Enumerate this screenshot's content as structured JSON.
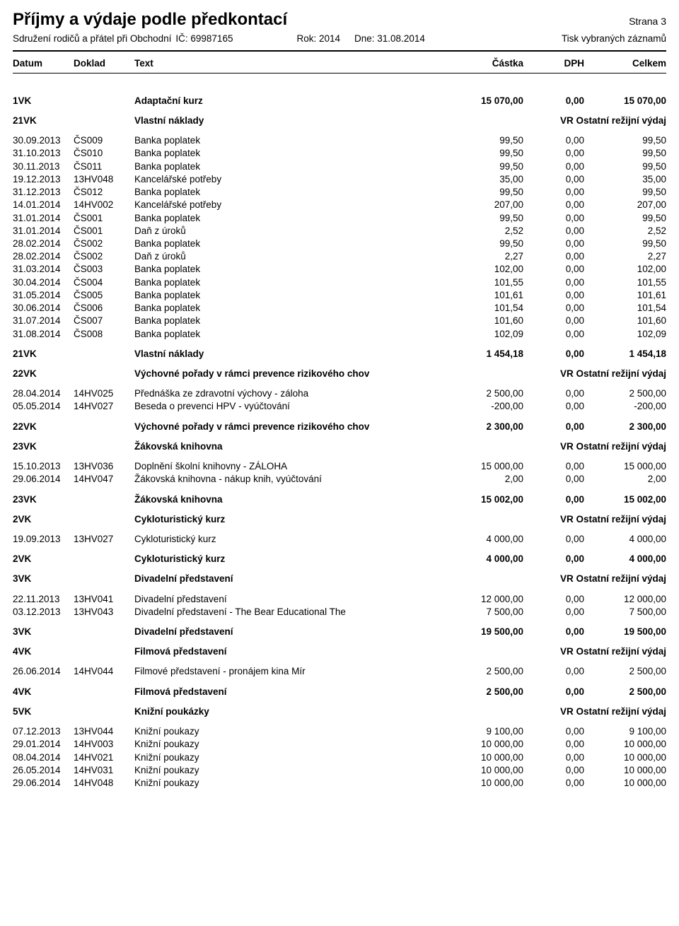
{
  "header": {
    "title": "Příjmy a výdaje podle předkontací",
    "page": "Strana 3",
    "org": "Sdružení rodičů a přátel při Obchodní",
    "ic": "IČ: 69987165",
    "rok": "Rok: 2014",
    "dne": "Dne: 31.08.2014",
    "tisk": "Tisk vybraných záznamů"
  },
  "columns": {
    "c1": "Datum",
    "c2": "Doklad",
    "c3": "Text",
    "c4": "Částka",
    "c5": "DPH",
    "c6": "Celkem"
  },
  "vr_note": "VR Ostatní režijní výdaj",
  "sections": [
    {
      "code": "1VK",
      "title": "Adaptační kurz",
      "header_totals": [
        "15 070,00",
        "0,00",
        "15 070,00"
      ],
      "rows": [],
      "footer_totals": null
    },
    {
      "code": "21VK",
      "title": "Vlastní náklady",
      "note": true,
      "header_totals": null,
      "rows": [
        {
          "d": "30.09.2013",
          "dk": "ČS009",
          "t": "Banka poplatek",
          "a": "99,50",
          "v": "0,00",
          "c": "99,50"
        },
        {
          "d": "31.10.2013",
          "dk": "ČS010",
          "t": "Banka poplatek",
          "a": "99,50",
          "v": "0,00",
          "c": "99,50"
        },
        {
          "d": "30.11.2013",
          "dk": "ČS011",
          "t": "Banka poplatek",
          "a": "99,50",
          "v": "0,00",
          "c": "99,50"
        },
        {
          "d": "19.12.2013",
          "dk": "13HV048",
          "t": "Kancelářské potřeby",
          "a": "35,00",
          "v": "0,00",
          "c": "35,00"
        },
        {
          "d": "31.12.2013",
          "dk": "ČS012",
          "t": "Banka poplatek",
          "a": "99,50",
          "v": "0,00",
          "c": "99,50"
        },
        {
          "d": "14.01.2014",
          "dk": "14HV002",
          "t": "Kancelářské potřeby",
          "a": "207,00",
          "v": "0,00",
          "c": "207,00"
        },
        {
          "d": "31.01.2014",
          "dk": "ČS001",
          "t": "Banka poplatek",
          "a": "99,50",
          "v": "0,00",
          "c": "99,50"
        },
        {
          "d": "31.01.2014",
          "dk": "ČS001",
          "t": "Daň z úroků",
          "a": "2,52",
          "v": "0,00",
          "c": "2,52"
        },
        {
          "d": "28.02.2014",
          "dk": "ČS002",
          "t": "Banka poplatek",
          "a": "99,50",
          "v": "0,00",
          "c": "99,50"
        },
        {
          "d": "28.02.2014",
          "dk": "ČS002",
          "t": "Daň z úroků",
          "a": "2,27",
          "v": "0,00",
          "c": "2,27"
        },
        {
          "d": "31.03.2014",
          "dk": "ČS003",
          "t": "Banka poplatek",
          "a": "102,00",
          "v": "0,00",
          "c": "102,00"
        },
        {
          "d": "30.04.2014",
          "dk": "ČS004",
          "t": "Banka poplatek",
          "a": "101,55",
          "v": "0,00",
          "c": "101,55"
        },
        {
          "d": "31.05.2014",
          "dk": "ČS005",
          "t": "Banka poplatek",
          "a": "101,61",
          "v": "0,00",
          "c": "101,61"
        },
        {
          "d": "30.06.2014",
          "dk": "ČS006",
          "t": "Banka poplatek",
          "a": "101,54",
          "v": "0,00",
          "c": "101,54"
        },
        {
          "d": "31.07.2014",
          "dk": "ČS007",
          "t": "Banka poplatek",
          "a": "101,60",
          "v": "0,00",
          "c": "101,60"
        },
        {
          "d": "31.08.2014",
          "dk": "ČS008",
          "t": "Banka poplatek",
          "a": "102,09",
          "v": "0,00",
          "c": "102,09"
        }
      ],
      "footer_totals": [
        "1 454,18",
        "0,00",
        "1 454,18"
      ]
    },
    {
      "code": "22VK",
      "title": "Výchovné pořady v rámci prevence rizikového chov",
      "note": true,
      "header_totals": null,
      "rows": [
        {
          "d": "28.04.2014",
          "dk": "14HV025",
          "t": "Přednáška ze zdravotní výchovy - záloha",
          "a": "2 500,00",
          "v": "0,00",
          "c": "2 500,00"
        },
        {
          "d": "05.05.2014",
          "dk": "14HV027",
          "t": "Beseda o prevenci HPV - vyúčtování",
          "a": "-200,00",
          "v": "0,00",
          "c": "-200,00"
        }
      ],
      "footer_totals": [
        "2 300,00",
        "0,00",
        "2 300,00"
      ],
      "footer_title": "Výchovné pořady v rámci prevence rizikového chov"
    },
    {
      "code": "23VK",
      "title": "Žákovská knihovna",
      "note": true,
      "header_totals": null,
      "rows": [
        {
          "d": "15.10.2013",
          "dk": "13HV036",
          "t": "Doplnění školní knihovny - ZÁLOHA",
          "a": "15 000,00",
          "v": "0,00",
          "c": "15 000,00"
        },
        {
          "d": "29.06.2014",
          "dk": "14HV047",
          "t": "Žákovská knihovna - nákup knih, vyúčtování",
          "a": "2,00",
          "v": "0,00",
          "c": "2,00"
        }
      ],
      "footer_totals": [
        "15 002,00",
        "0,00",
        "15 002,00"
      ]
    },
    {
      "code": "2VK",
      "title": "Cykloturistický kurz",
      "note": true,
      "header_totals": null,
      "rows": [
        {
          "d": "19.09.2013",
          "dk": "13HV027",
          "t": "Cykloturistický kurz",
          "a": "4 000,00",
          "v": "0,00",
          "c": "4 000,00"
        }
      ],
      "footer_totals": [
        "4 000,00",
        "0,00",
        "4 000,00"
      ]
    },
    {
      "code": "3VK",
      "title": "Divadelní představení",
      "note": true,
      "header_totals": null,
      "rows": [
        {
          "d": "22.11.2013",
          "dk": "13HV041",
          "t": "Divadelní představení",
          "a": "12 000,00",
          "v": "0,00",
          "c": "12 000,00"
        },
        {
          "d": "03.12.2013",
          "dk": "13HV043",
          "t": "Divadelní představení - The Bear Educational The",
          "a": "7 500,00",
          "v": "0,00",
          "c": "7 500,00"
        }
      ],
      "footer_totals": [
        "19 500,00",
        "0,00",
        "19 500,00"
      ]
    },
    {
      "code": "4VK",
      "title": "Filmová představení",
      "note": true,
      "header_totals": null,
      "rows": [
        {
          "d": "26.06.2014",
          "dk": "14HV044",
          "t": "Filmové představení - pronájem kina Mír",
          "a": "2 500,00",
          "v": "0,00",
          "c": "2 500,00"
        }
      ],
      "footer_totals": [
        "2 500,00",
        "0,00",
        "2 500,00"
      ]
    },
    {
      "code": "5VK",
      "title": "Knižní poukázky",
      "note": true,
      "header_totals": null,
      "rows": [
        {
          "d": "07.12.2013",
          "dk": "13HV044",
          "t": "Knižní poukazy",
          "a": "9 100,00",
          "v": "0,00",
          "c": "9 100,00"
        },
        {
          "d": "29.01.2014",
          "dk": "14HV003",
          "t": "Knižní poukazy",
          "a": "10 000,00",
          "v": "0,00",
          "c": "10 000,00"
        },
        {
          "d": "08.04.2014",
          "dk": "14HV021",
          "t": "Knižní poukazy",
          "a": "10 000,00",
          "v": "0,00",
          "c": "10 000,00"
        },
        {
          "d": "26.05.2014",
          "dk": "14HV031",
          "t": "Knižní poukazy",
          "a": "10 000,00",
          "v": "0,00",
          "c": "10 000,00"
        },
        {
          "d": "29.06.2014",
          "dk": "14HV048",
          "t": "Knižní poukazy",
          "a": "10 000,00",
          "v": "0,00",
          "c": "10 000,00"
        }
      ],
      "footer_totals": null
    }
  ]
}
